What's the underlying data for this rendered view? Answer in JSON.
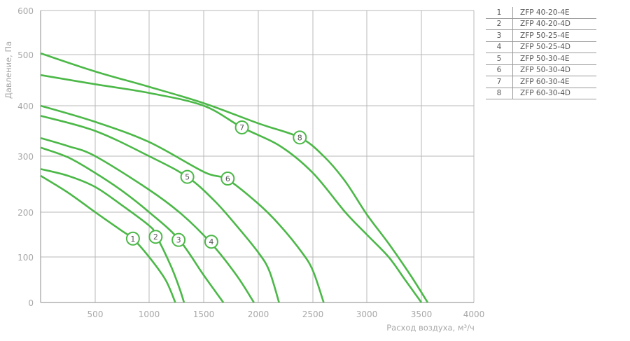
{
  "chart_data": {
    "type": "line",
    "title": "",
    "xlabel": "Расход воздуха, м³/ч",
    "ylabel": "Давление, Па",
    "xlim": [
      0,
      4000
    ],
    "ylim": [
      0,
      600
    ],
    "xticks": [
      500,
      1000,
      1500,
      2000,
      2500,
      3000,
      3500,
      4000
    ],
    "yticks": [
      0,
      100,
      200,
      300,
      400,
      500,
      600
    ],
    "grid": true,
    "line_color": "#4cb848",
    "legend_position": "top-right table",
    "series": [
      {
        "name": "1",
        "model": "ZFP 40-20-4E",
        "label_at": [
          850,
          141
        ],
        "points": [
          [
            0,
            265
          ],
          [
            250,
            235
          ],
          [
            500,
            200
          ],
          [
            750,
            158
          ],
          [
            850,
            141
          ],
          [
            1000,
            100
          ],
          [
            1150,
            50
          ],
          [
            1240,
            0
          ]
        ]
      },
      {
        "name": "2",
        "model": "ZFP 40-20-4D",
        "label_at": [
          1060,
          145
        ],
        "points": [
          [
            0,
            277
          ],
          [
            250,
            265
          ],
          [
            500,
            245
          ],
          [
            750,
            212
          ],
          [
            1000,
            170
          ],
          [
            1060,
            150
          ],
          [
            1200,
            80
          ],
          [
            1280,
            30
          ],
          [
            1320,
            0
          ]
        ]
      },
      {
        "name": "3",
        "model": "ZFP 50-25-4E",
        "label_at": [
          1270,
          138
        ],
        "points": [
          [
            0,
            317
          ],
          [
            250,
            298
          ],
          [
            500,
            270
          ],
          [
            750,
            238
          ],
          [
            1000,
            200
          ],
          [
            1270,
            140
          ],
          [
            1500,
            60
          ],
          [
            1680,
            0
          ]
        ]
      },
      {
        "name": "4",
        "model": "ZFP 50-25-4D",
        "label_at": [
          1570,
          134
        ],
        "points": [
          [
            0,
            336
          ],
          [
            250,
            320
          ],
          [
            500,
            300
          ],
          [
            1000,
            240
          ],
          [
            1300,
            195
          ],
          [
            1570,
            130
          ],
          [
            1800,
            60
          ],
          [
            1960,
            0
          ]
        ]
      },
      {
        "name": "5",
        "model": "ZFP 50-30-4E",
        "label_at": [
          1350,
          263
        ],
        "points": [
          [
            0,
            380
          ],
          [
            500,
            350
          ],
          [
            1000,
            300
          ],
          [
            1350,
            263
          ],
          [
            1600,
            220
          ],
          [
            1800,
            170
          ],
          [
            2000,
            110
          ],
          [
            2100,
            70
          ],
          [
            2190,
            0
          ]
        ]
      },
      {
        "name": "6",
        "model": "ZFP 50-30-4D",
        "label_at": [
          1720,
          260
        ],
        "points": [
          [
            0,
            400
          ],
          [
            500,
            368
          ],
          [
            1000,
            328
          ],
          [
            1500,
            272
          ],
          [
            1720,
            258
          ],
          [
            2000,
            215
          ],
          [
            2200,
            170
          ],
          [
            2400,
            110
          ],
          [
            2500,
            70
          ],
          [
            2600,
            0
          ]
        ]
      },
      {
        "name": "7",
        "model": "ZFP 60-30-4E",
        "label_at": [
          1850,
          357
        ],
        "points": [
          [
            0,
            460
          ],
          [
            500,
            442
          ],
          [
            1000,
            425
          ],
          [
            1500,
            400
          ],
          [
            1850,
            357
          ],
          [
            2200,
            320
          ],
          [
            2500,
            270
          ],
          [
            2800,
            200
          ],
          [
            3000,
            150
          ],
          [
            3200,
            100
          ],
          [
            3350,
            50
          ],
          [
            3500,
            0
          ]
        ]
      },
      {
        "name": "8",
        "model": "ZFP 60-30-4D",
        "label_at": [
          2380,
          337
        ],
        "points": [
          [
            0,
            503
          ],
          [
            500,
            467
          ],
          [
            1000,
            437
          ],
          [
            1500,
            405
          ],
          [
            2000,
            365
          ],
          [
            2380,
            337
          ],
          [
            2600,
            300
          ],
          [
            2800,
            255
          ],
          [
            3000,
            195
          ],
          [
            3200,
            130
          ],
          [
            3400,
            60
          ],
          [
            3560,
            0
          ]
        ]
      }
    ]
  }
}
